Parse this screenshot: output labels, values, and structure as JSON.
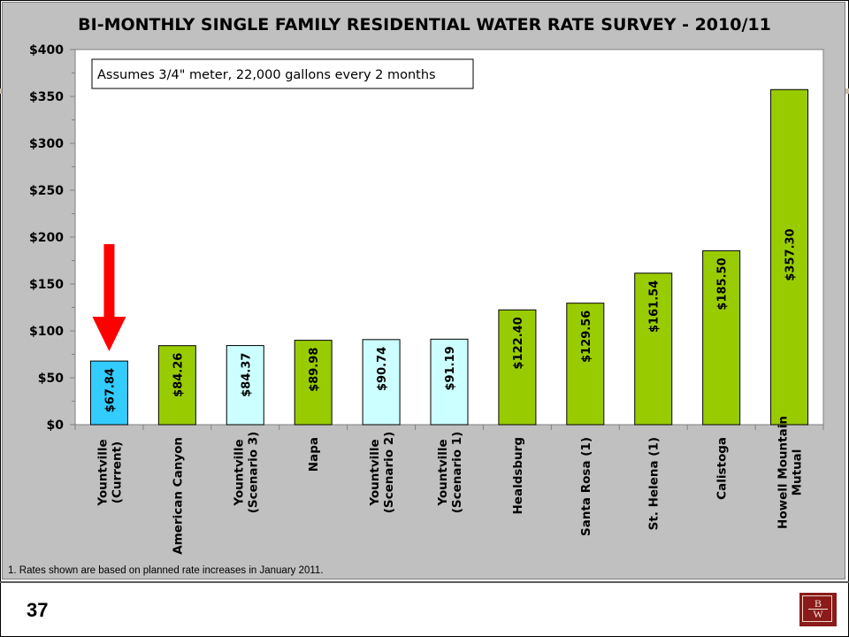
{
  "slide": {
    "page_number": "37",
    "logo_letters": [
      "B",
      "W"
    ]
  },
  "chart_data": {
    "type": "bar",
    "title": "BI-MONTHLY SINGLE FAMILY RESIDENTIAL WATER RATE SURVEY - 2010/11",
    "annotation": "Assumes 3/4\" meter, 22,000 gallons every 2 months",
    "footnote": "1.  Rates shown are based on planned rate increases in January 2011.",
    "categories": [
      [
        "Yountville",
        "(Current)"
      ],
      [
        "American Canyon"
      ],
      [
        "Yountville",
        "(Scenario 3)"
      ],
      [
        "Napa"
      ],
      [
        "Yountville",
        "(Scenario 2)"
      ],
      [
        "Yountville",
        "(Scenario 1)"
      ],
      [
        "Healdsburg"
      ],
      [
        "Santa Rosa (1)"
      ],
      [
        "St. Helena (1)"
      ],
      [
        "Calistoga"
      ],
      [
        "Howell Mountain",
        "Mutual"
      ]
    ],
    "values": [
      67.84,
      84.26,
      84.37,
      89.98,
      90.74,
      91.19,
      122.4,
      129.56,
      161.54,
      185.5,
      357.3
    ],
    "data_labels": [
      "$67.84",
      "$84.26",
      "$84.37",
      "$89.98",
      "$90.74",
      "$91.19",
      "$122.40",
      "$129.56",
      "$161.54",
      "$185.50",
      "$357.30"
    ],
    "colors": [
      "#33ccff",
      "#99cc00",
      "#ccffff",
      "#99cc00",
      "#ccffff",
      "#ccffff",
      "#99cc00",
      "#99cc00",
      "#99cc00",
      "#99cc00",
      "#99cc00"
    ],
    "ylim": [
      0,
      400
    ],
    "yticks": [
      0,
      50,
      100,
      150,
      200,
      250,
      300,
      350,
      400
    ],
    "ytick_labels": [
      "$0",
      "$50",
      "$100",
      "$150",
      "$200",
      "$250",
      "$300",
      "$350",
      "$400"
    ],
    "arrow_color": "#ff0000",
    "grid": false,
    "legend": "none"
  }
}
